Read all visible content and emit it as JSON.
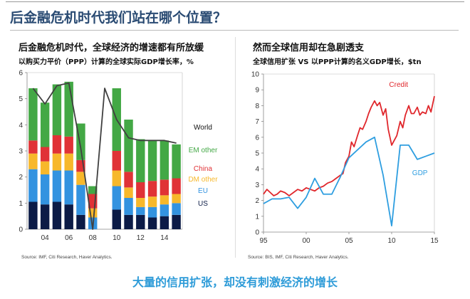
{
  "page": {
    "title": "后金融危机时代我们站在哪个位置？",
    "caption": "大量的信用扩张，却没有刺激经济的增长"
  },
  "left": {
    "title": "后金融危机时代，全球经济的增速都有所放缓",
    "subtitle": "以购买力平价（PPP）计算的全球实际GDP增长率，%",
    "source": "Source: IMF, Citi Research, Haver Analytics."
  },
  "right": {
    "title": "然而全球信用却在急剧透支",
    "subtitle": "全球信用扩张 VS 以PPP计算的名义GDP增长，$tn",
    "source": "Source: BIS, IMF, Citi Research, Haver Analytics."
  },
  "colors": {
    "US": "#0c1b46",
    "EU": "#3393e0",
    "DM other": "#f7b82b",
    "China": "#e03236",
    "EM other": "#43a845",
    "World": "#404040",
    "Credit": "#e0262b",
    "GDP": "#2e9ee0",
    "title": "#2a4b73",
    "caption": "#2d9bd8"
  },
  "chart_data": [
    {
      "type": "bar",
      "stacked": true,
      "title": "后金融危机时代，全球经济的增速都有所放缓",
      "subtitle": "以购买力平价（PPP）计算的全球实际GDP增长率，%",
      "categories": [
        "2003",
        "2004",
        "2005",
        "2006",
        "2007",
        "2008",
        "2009",
        "2010",
        "2011",
        "2012",
        "2013",
        "2014",
        "2015"
      ],
      "xtick_labels": [
        {
          "category": "2004",
          "label": "04"
        },
        {
          "category": "2006",
          "label": "06"
        },
        {
          "category": "2008",
          "label": "08"
        },
        {
          "category": "2010",
          "label": "10"
        },
        {
          "category": "2012",
          "label": "12"
        },
        {
          "category": "2014",
          "label": "14"
        }
      ],
      "ylim": [
        0,
        6
      ],
      "yticks": [
        0,
        1,
        2,
        3,
        4,
        5,
        6
      ],
      "series": [
        {
          "name": "US",
          "values": [
            1.05,
            0.95,
            1.05,
            0.95,
            0.55,
            0.0,
            0.0,
            0.75,
            0.55,
            0.55,
            0.45,
            0.5,
            0.55
          ]
        },
        {
          "name": "EU",
          "values": [
            1.25,
            1.15,
            1.2,
            1.3,
            1.15,
            0.45,
            0.0,
            0.9,
            0.65,
            0.3,
            0.4,
            0.45,
            0.45
          ]
        },
        {
          "name": "DM other",
          "values": [
            0.6,
            0.5,
            0.65,
            0.65,
            0.5,
            0.35,
            0.0,
            0.6,
            0.4,
            0.35,
            0.4,
            0.35,
            0.35
          ]
        },
        {
          "name": "China",
          "values": [
            0.5,
            0.55,
            0.7,
            0.65,
            0.45,
            0.55,
            0.0,
            0.75,
            0.6,
            0.6,
            0.6,
            0.6,
            0.6
          ]
        },
        {
          "name": "EM other",
          "values": [
            2.0,
            1.7,
            1.95,
            2.1,
            1.4,
            0.3,
            0.0,
            2.4,
            2.0,
            1.65,
            1.55,
            1.5,
            1.3
          ]
        }
      ],
      "world_line": {
        "name": "World",
        "values": [
          5.4,
          4.8,
          5.5,
          5.6,
          3.1,
          0.0,
          5.4,
          4.2,
          3.5,
          3.4,
          3.4,
          3.4,
          3.3
        ]
      }
    },
    {
      "type": "line",
      "title": "然而全球信用却在急剧透支",
      "subtitle": "全球信用扩张 VS 以PPP计算的名义GDP增长，$tn",
      "xlim": [
        1995,
        2015
      ],
      "xticks": [
        1995,
        2000,
        2005,
        2010,
        2015
      ],
      "xtick_labels": [
        "95",
        "00",
        "05",
        "10",
        "15"
      ],
      "ylim": [
        0,
        10
      ],
      "yticks": [
        0,
        1,
        2,
        3,
        4,
        5,
        6,
        7,
        8,
        9,
        10
      ],
      "series": [
        {
          "name": "Credit",
          "x": [
            1995,
            1995.4,
            1995.8,
            1996.2,
            1996.6,
            1997,
            1997.5,
            1998,
            1998.5,
            1999,
            1999.5,
            2000,
            2000.5,
            2001,
            2001.5,
            2002,
            2002.5,
            2003,
            2003.5,
            2004,
            2004.3,
            2004.6,
            2005,
            2005.3,
            2005.6,
            2006,
            2006.3,
            2006.6,
            2007,
            2007.3,
            2007.6,
            2008,
            2008.3,
            2008.6,
            2009,
            2009.3,
            2009.6,
            2010,
            2010.3,
            2010.6,
            2011,
            2011.3,
            2011.6,
            2012,
            2012.3,
            2012.6,
            2013,
            2013.3,
            2013.6,
            2014,
            2014.3,
            2014.6,
            2015
          ],
          "values": [
            2.4,
            2.7,
            2.5,
            2.3,
            2.4,
            2.6,
            2.5,
            2.3,
            2.5,
            2.7,
            2.6,
            2.8,
            2.7,
            2.6,
            2.8,
            2.9,
            3.1,
            3.2,
            3.4,
            3.6,
            3.7,
            4.4,
            4.8,
            5.7,
            5.4,
            6.1,
            6.6,
            6.5,
            7.0,
            7.5,
            7.9,
            8.3,
            8.0,
            8.2,
            7.4,
            7.8,
            6.5,
            5.5,
            5.8,
            6.1,
            7.0,
            6.6,
            7.4,
            8.0,
            7.5,
            7.5,
            7.9,
            7.4,
            7.6,
            7.5,
            8.0,
            7.6,
            8.6
          ]
        },
        {
          "name": "GDP",
          "x": [
            1995,
            1996,
            1997,
            1998,
            1999,
            2000,
            2001,
            2002,
            2003,
            2004,
            2005,
            2006,
            2007,
            2008,
            2009,
            2010,
            2011,
            2012,
            2013,
            2014,
            2015
          ],
          "values": [
            1.8,
            2.1,
            2.1,
            2.2,
            1.5,
            2.2,
            3.4,
            2.4,
            2.4,
            3.5,
            4.7,
            5.2,
            5.7,
            6.0,
            3.6,
            0.4,
            5.5,
            5.5,
            4.6,
            4.8,
            5.0
          ]
        }
      ],
      "annotations": [
        {
          "series": "Credit",
          "label": "Credit"
        },
        {
          "series": "GDP",
          "label": "GDP"
        }
      ]
    }
  ]
}
